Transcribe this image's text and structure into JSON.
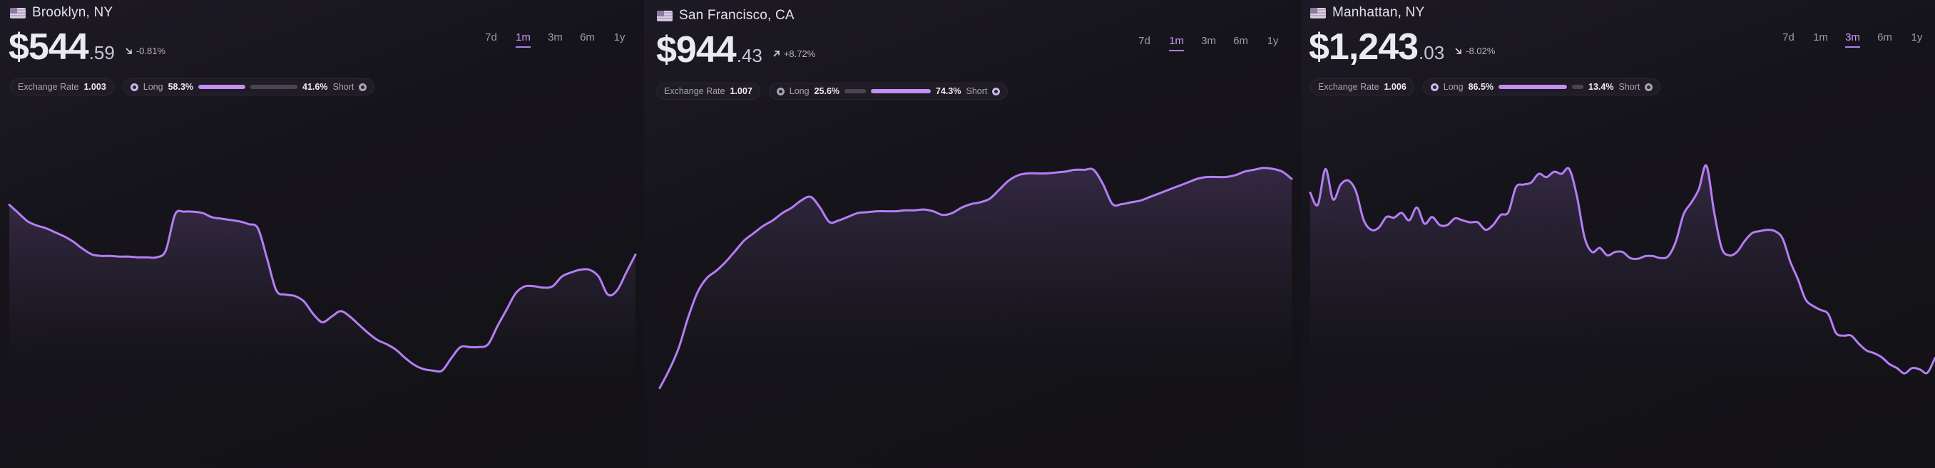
{
  "colors": {
    "background": "#131216",
    "accent": "#b57ef4",
    "line": "#b57ef4"
  },
  "panels": [
    {
      "city": "Brooklyn, NY",
      "flag_icon": "us-flag-icon",
      "price_main": "$544",
      "price_cents": ".59",
      "change_direction": "down",
      "change": "-0.81%",
      "timeframes": [
        "7d",
        "1m",
        "3m",
        "6m",
        "1y"
      ],
      "active_timeframe": "1m",
      "exchange_label": "Exchange Rate",
      "exchange_value": "1.003",
      "long_label": "Long",
      "long_value": "58.3%",
      "short_label": "Short",
      "short_value": "41.6%",
      "long_fraction": 0.583
    },
    {
      "city": "San Francisco, CA",
      "flag_icon": "us-flag-icon",
      "price_main": "$944",
      "price_cents": ".43",
      "change_direction": "up",
      "change": "+8.72%",
      "timeframes": [
        "7d",
        "1m",
        "3m",
        "6m",
        "1y"
      ],
      "active_timeframe": "1m",
      "exchange_label": "Exchange Rate",
      "exchange_value": "1.007",
      "long_label": "Long",
      "long_value": "25.6%",
      "short_label": "Short",
      "short_value": "74.3%",
      "long_fraction": 0.256
    },
    {
      "city": "Manhattan, NY",
      "flag_icon": "us-flag-icon",
      "price_main": "$1,243",
      "price_cents": ".03",
      "change_direction": "down",
      "change": "-8.02%",
      "timeframes": [
        "7d",
        "1m",
        "3m",
        "6m",
        "1y"
      ],
      "active_timeframe": "3m",
      "exchange_label": "Exchange Rate",
      "exchange_value": "1.006",
      "long_label": "Long",
      "long_value": "86.5%",
      "short_label": "Short",
      "short_value": "13.4%",
      "long_fraction": 0.865
    }
  ],
  "chart_data": [
    {
      "type": "area",
      "title": "",
      "xlabel": "",
      "ylabel": "",
      "grid": false,
      "values": [
        0.89,
        0.83,
        0.77,
        0.74,
        0.72,
        0.69,
        0.66,
        0.62,
        0.57,
        0.53,
        0.52,
        0.52,
        0.515,
        0.515,
        0.51,
        0.51,
        0.51,
        0.56,
        0.82,
        0.84,
        0.84,
        0.83,
        0.8,
        0.79,
        0.78,
        0.77,
        0.75,
        0.72,
        0.5,
        0.27,
        0.24,
        0.23,
        0.19,
        0.1,
        0.04,
        0.08,
        0.12,
        0.08,
        0.02,
        -0.04,
        -0.09,
        -0.12,
        -0.16,
        -0.22,
        -0.27,
        -0.3,
        -0.31,
        -0.31,
        -0.22,
        -0.14,
        -0.14,
        -0.14,
        -0.12,
        0.01,
        0.13,
        0.25,
        0.3,
        0.3,
        0.29,
        0.3,
        0.37,
        0.4,
        0.42,
        0.42,
        0.37,
        0.24,
        0.27,
        0.4,
        0.53
      ]
    },
    {
      "type": "area",
      "title": "",
      "xlabel": "",
      "ylabel": "",
      "grid": false,
      "values": [
        -0.25,
        -0.15,
        -0.03,
        0.14,
        0.28,
        0.36,
        0.4,
        0.45,
        0.51,
        0.57,
        0.61,
        0.65,
        0.68,
        0.72,
        0.75,
        0.79,
        0.81,
        0.75,
        0.67,
        0.68,
        0.7,
        0.72,
        0.725,
        0.73,
        0.73,
        0.73,
        0.735,
        0.735,
        0.74,
        0.73,
        0.71,
        0.72,
        0.75,
        0.77,
        0.78,
        0.8,
        0.85,
        0.9,
        0.93,
        0.94,
        0.94,
        0.94,
        0.945,
        0.95,
        0.96,
        0.96,
        0.96,
        0.88,
        0.77,
        0.77,
        0.78,
        0.79,
        0.81,
        0.83,
        0.85,
        0.87,
        0.89,
        0.91,
        0.92,
        0.92,
        0.92,
        0.93,
        0.95,
        0.96,
        0.97,
        0.965,
        0.95,
        0.91
      ]
    },
    {
      "type": "area",
      "title": "",
      "xlabel": "",
      "ylabel": "",
      "grid": false,
      "values": [
        1130,
        1112,
        1165,
        1120,
        1142,
        1148,
        1132,
        1090,
        1075,
        1078,
        1094,
        1093,
        1100,
        1089,
        1108,
        1084,
        1094,
        1082,
        1082,
        1092,
        1089,
        1086,
        1086,
        1075,
        1082,
        1097,
        1101,
        1138,
        1142,
        1145,
        1158,
        1153,
        1161,
        1158,
        1165,
        1125,
        1064,
        1042,
        1048,
        1037,
        1042,
        1042,
        1033,
        1032,
        1036,
        1036,
        1033,
        1036,
        1058,
        1098,
        1115,
        1135,
        1170,
        1102,
        1048,
        1037,
        1042,
        1058,
        1070,
        1073,
        1075,
        1073,
        1062,
        1028,
        1002,
        972,
        962,
        956,
        950,
        922,
        918,
        918,
        906,
        896,
        892,
        886,
        876,
        870,
        862,
        870,
        868,
        863,
        885
      ]
    }
  ]
}
